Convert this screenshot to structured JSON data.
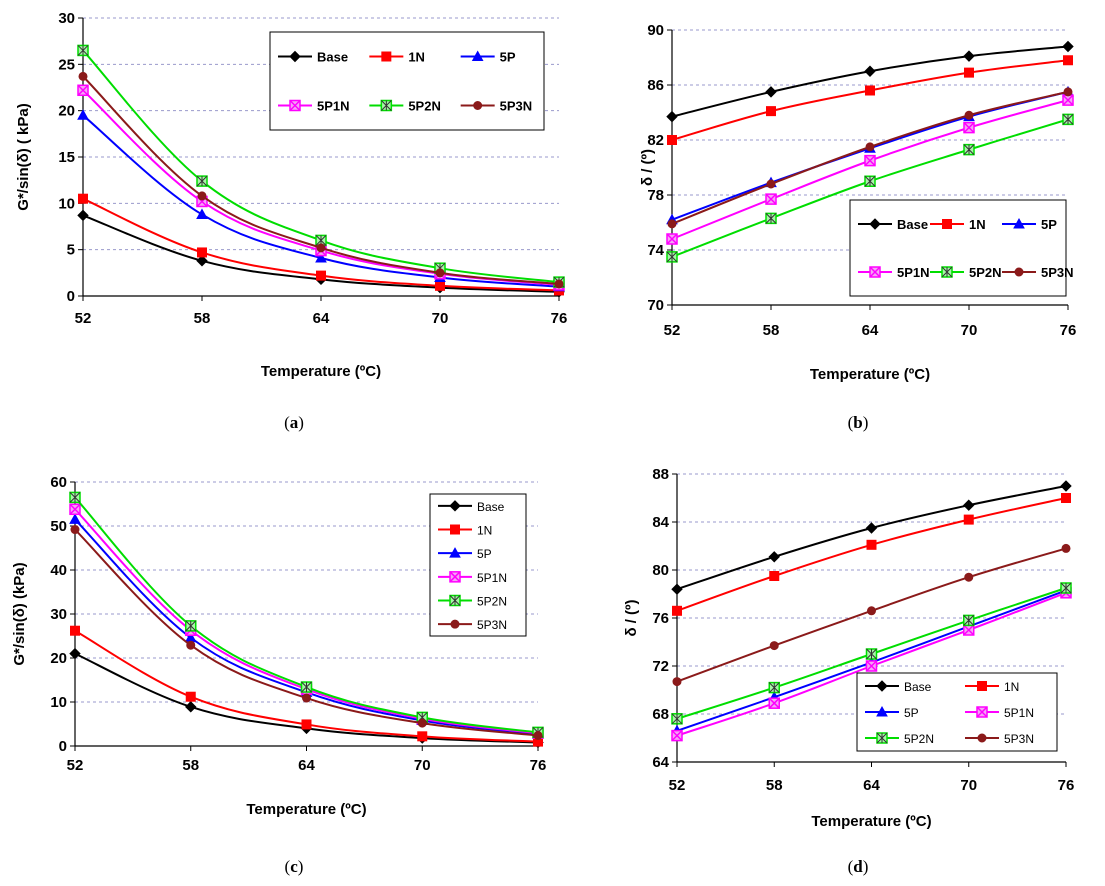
{
  "colors": {
    "Base": "#000000",
    "1N": "#ff0000",
    "5P": "#0000ff",
    "5P1N": "#ff00ff",
    "5P2N": "#00dd00",
    "5P3N": "#8b1a1a",
    "grid": "#9999cc"
  },
  "captions": [
    "a",
    "b",
    "c",
    "d"
  ],
  "chart_data": [
    {
      "id": "a",
      "type": "line",
      "title": "",
      "xlabel": "Temperature (ºC)",
      "ylabel": "G*/sin(δ)  ( kPa)",
      "x": [
        52,
        58,
        64,
        70,
        76
      ],
      "ylim": [
        0,
        30
      ],
      "yticks": [
        "0",
        "5",
        "10",
        "15",
        "20",
        "25",
        "30"
      ],
      "legend": "top-right",
      "series": [
        {
          "name": "Base",
          "values": [
            8.7,
            3.8,
            1.8,
            0.9,
            0.45
          ]
        },
        {
          "name": "1N",
          "values": [
            10.5,
            4.7,
            2.2,
            1.1,
            0.6
          ]
        },
        {
          "name": "5P",
          "values": [
            19.5,
            8.8,
            4.1,
            2.0,
            1.0
          ]
        },
        {
          "name": "5P1N",
          "values": [
            22.2,
            10.2,
            4.9,
            2.4,
            1.2
          ]
        },
        {
          "name": "5P2N",
          "values": [
            26.5,
            12.4,
            6.0,
            3.0,
            1.5
          ]
        },
        {
          "name": "5P3N",
          "values": [
            23.7,
            10.8,
            5.2,
            2.5,
            1.3
          ]
        }
      ]
    },
    {
      "id": "b",
      "type": "line",
      "title": "",
      "xlabel": "Temperature (ºC)",
      "ylabel": "δ / (º)",
      "x": [
        52,
        58,
        64,
        70,
        76
      ],
      "ylim": [
        70,
        90
      ],
      "yticks": [
        "70",
        "74",
        "78",
        "82",
        "86",
        "90"
      ],
      "legend": "bottom-right",
      "series": [
        {
          "name": "Base",
          "values": [
            83.7,
            85.5,
            87.0,
            88.1,
            88.8
          ]
        },
        {
          "name": "1N",
          "values": [
            82.0,
            84.1,
            85.6,
            86.9,
            87.8
          ]
        },
        {
          "name": "5P",
          "values": [
            76.2,
            78.9,
            81.4,
            83.7,
            85.5
          ]
        },
        {
          "name": "5P1N",
          "values": [
            74.8,
            77.7,
            80.5,
            82.9,
            84.9
          ]
        },
        {
          "name": "5P2N",
          "values": [
            73.5,
            76.3,
            79.0,
            81.3,
            83.5
          ]
        },
        {
          "name": "5P3N",
          "values": [
            75.9,
            78.8,
            81.5,
            83.8,
            85.5
          ]
        }
      ]
    },
    {
      "id": "c",
      "type": "line",
      "title": "",
      "xlabel": "Temperature (ºC)",
      "ylabel": "G*/sin(δ) (kPa)",
      "x": [
        52,
        58,
        64,
        70,
        76
      ],
      "ylim": [
        0,
        60
      ],
      "yticks": [
        "0",
        "10",
        "20",
        "30",
        "40",
        "50",
        "60"
      ],
      "legend": "top-right",
      "series": [
        {
          "name": "Base",
          "values": [
            21.0,
            8.9,
            4.0,
            1.8,
            0.8
          ]
        },
        {
          "name": "1N",
          "values": [
            26.2,
            11.2,
            4.9,
            2.2,
            1.0
          ]
        },
        {
          "name": "5P",
          "values": [
            51.5,
            24.6,
            12.2,
            5.8,
            2.7
          ]
        },
        {
          "name": "5P1N",
          "values": [
            53.8,
            26.3,
            12.9,
            6.2,
            2.9
          ]
        },
        {
          "name": "5P2N",
          "values": [
            56.5,
            27.3,
            13.4,
            6.5,
            3.1
          ]
        },
        {
          "name": "5P3N",
          "values": [
            49.2,
            22.9,
            10.9,
            5.2,
            2.4
          ]
        }
      ]
    },
    {
      "id": "d",
      "type": "line",
      "title": "",
      "xlabel": "Temperature (ºC)",
      "ylabel": "δ / (º)",
      "x": [
        52,
        58,
        64,
        70,
        76
      ],
      "ylim": [
        64,
        88
      ],
      "yticks": [
        "64",
        "68",
        "72",
        "76",
        "80",
        "84",
        "88"
      ],
      "legend": "bottom-right",
      "series": [
        {
          "name": "Base",
          "values": [
            78.4,
            81.1,
            83.5,
            85.4,
            87.0
          ]
        },
        {
          "name": "1N",
          "values": [
            76.6,
            79.5,
            82.1,
            84.2,
            86.0
          ]
        },
        {
          "name": "5P",
          "values": [
            66.6,
            69.4,
            72.3,
            75.3,
            78.3
          ]
        },
        {
          "name": "5P1N",
          "values": [
            66.2,
            68.9,
            72.0,
            75.0,
            78.1
          ]
        },
        {
          "name": "5P2N",
          "values": [
            67.6,
            70.2,
            73.0,
            75.8,
            78.5
          ]
        },
        {
          "name": "5P3N",
          "values": [
            70.7,
            73.7,
            76.6,
            79.4,
            81.8
          ]
        }
      ]
    }
  ]
}
